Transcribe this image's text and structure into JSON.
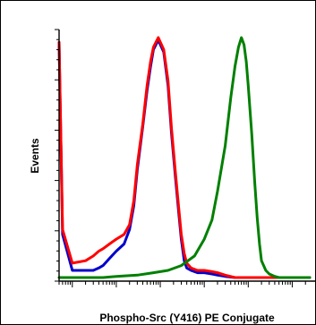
{
  "chart_data": {
    "type": "line",
    "title": "",
    "xlabel": "Phospho-Src (Y416) PE Conjugate",
    "ylabel": "Events",
    "x_scale": "log",
    "xlim": [
      0.5,
      250000
    ],
    "ylim": [
      0,
      1
    ],
    "grid": false,
    "legend": "none",
    "series": [
      {
        "color": "#0000cc",
        "x": [
          0.5,
          0.6,
          1,
          2,
          3,
          4,
          5,
          7,
          10,
          15,
          20,
          25,
          30,
          40,
          50,
          60,
          70,
          90,
          120,
          150,
          180,
          220,
          260,
          300,
          350,
          400,
          500,
          700,
          1000,
          1500,
          2000,
          3000,
          5000,
          10000,
          20000,
          50000,
          100000,
          250000
        ],
        "values": [
          0.98,
          0.18,
          0.03,
          0.03,
          0.03,
          0.04,
          0.05,
          0.08,
          0.11,
          0.14,
          0.2,
          0.3,
          0.45,
          0.63,
          0.78,
          0.88,
          0.95,
          0.99,
          0.94,
          0.8,
          0.6,
          0.42,
          0.28,
          0.16,
          0.07,
          0.04,
          0.03,
          0.02,
          0.02,
          0.015,
          0.01,
          0.005,
          0,
          0,
          0,
          0,
          0,
          0
        ]
      },
      {
        "color": "#ff0000",
        "x": [
          0.5,
          0.6,
          1,
          2,
          3,
          4,
          5,
          7,
          10,
          15,
          20,
          25,
          30,
          40,
          50,
          60,
          70,
          90,
          120,
          150,
          180,
          220,
          260,
          300,
          350,
          400,
          500,
          700,
          1000,
          1500,
          2000,
          3000,
          5000,
          10000,
          20000,
          50000,
          100000,
          250000
        ],
        "values": [
          0.98,
          0.2,
          0.06,
          0.07,
          0.09,
          0.11,
          0.12,
          0.14,
          0.16,
          0.18,
          0.22,
          0.32,
          0.47,
          0.64,
          0.8,
          0.9,
          0.96,
          1.0,
          0.95,
          0.82,
          0.62,
          0.44,
          0.3,
          0.18,
          0.1,
          0.06,
          0.04,
          0.03,
          0.03,
          0.025,
          0.02,
          0.01,
          0,
          0,
          0,
          0,
          0,
          0
        ]
      },
      {
        "color": "#008000",
        "x": [
          0.5,
          5,
          10,
          30,
          70,
          150,
          300,
          600,
          1000,
          1500,
          2000,
          3000,
          4000,
          5000,
          6000,
          7000,
          8000,
          9000,
          10000,
          12000,
          14000,
          16000,
          18000,
          20000,
          25000,
          30000,
          40000,
          50000,
          100000,
          250000
        ],
        "values": [
          0,
          0,
          0.005,
          0.01,
          0.02,
          0.03,
          0.05,
          0.09,
          0.16,
          0.24,
          0.36,
          0.55,
          0.75,
          0.88,
          0.96,
          1.0,
          0.97,
          0.9,
          0.8,
          0.6,
          0.4,
          0.25,
          0.14,
          0.07,
          0.03,
          0.015,
          0.005,
          0,
          0,
          0
        ]
      }
    ]
  }
}
